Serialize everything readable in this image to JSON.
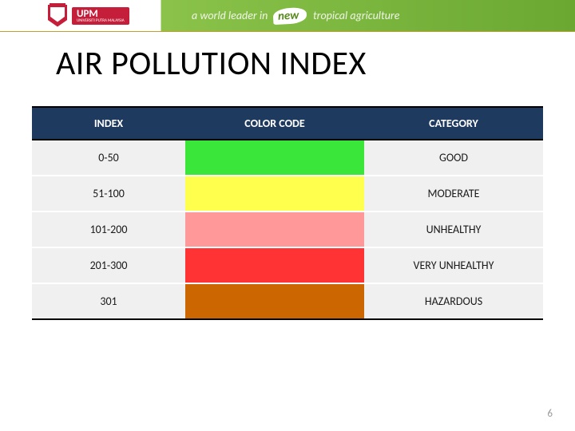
{
  "banner": {
    "tagline_prefix": "a world leader in",
    "tagline_highlight": "new",
    "tagline_suffix": "tropical agriculture",
    "upm_label": "UPM",
    "upm_sub": "UNIVERSITI PUTRA MALAYSIA"
  },
  "title": "AIR POLLUTION INDEX",
  "table": {
    "type": "table",
    "header_bg": "#1f3a5f",
    "header_fg": "#ffffff",
    "row_bg": "#f0f0f0",
    "border_color": "#000000",
    "columns": [
      "INDEX",
      "COLOR CODE",
      "CATEGORY"
    ],
    "col_widths_pct": [
      30,
      35,
      35
    ],
    "rows": [
      {
        "index": "0-50",
        "color": "#39e639",
        "category": "GOOD"
      },
      {
        "index": "51-100",
        "color": "#ffff4d",
        "category": "MODERATE"
      },
      {
        "index": "101-200",
        "color": "#ff9999",
        "category": "UNHEALTHY"
      },
      {
        "index": "201-300",
        "color": "#ff3333",
        "category": "VERY UNHEALTHY"
      },
      {
        "index": "301",
        "color": "#cc6600",
        "category": "HAZARDOUS"
      }
    ],
    "font_size": 14
  },
  "page_number": "6"
}
